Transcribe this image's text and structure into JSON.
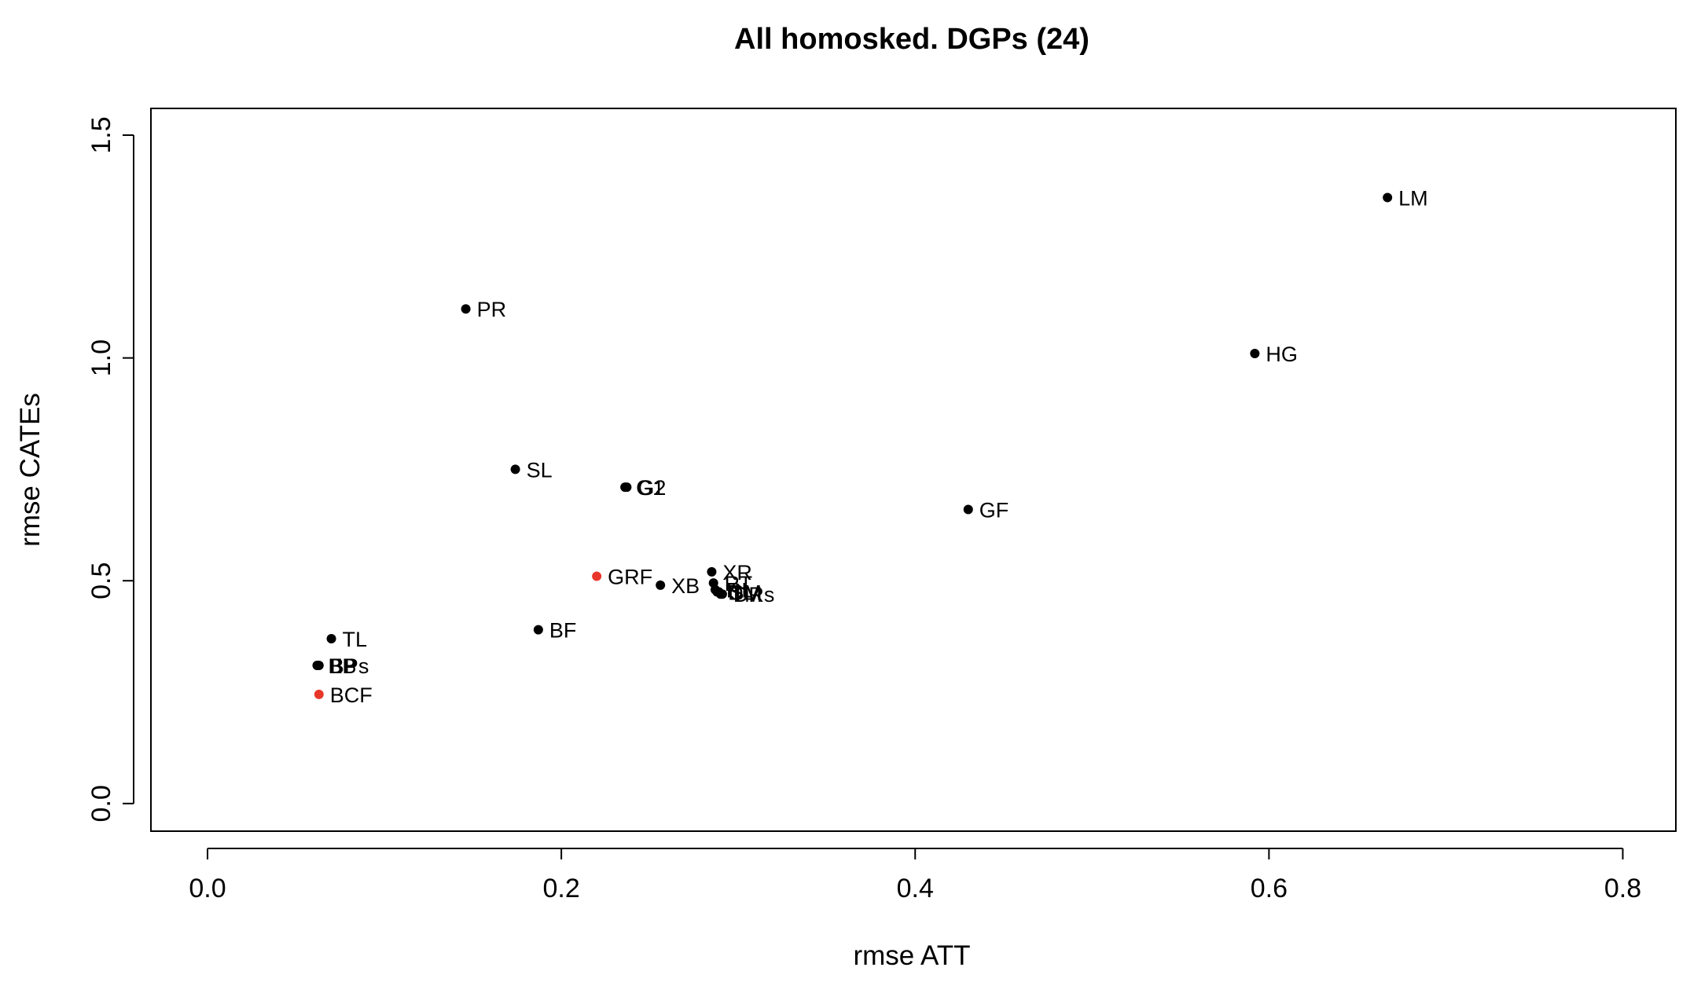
{
  "chart_data": {
    "type": "scatter",
    "title": "All homosked. DGPs (24)",
    "xlabel": "rmse ATT",
    "ylabel": "rmse CATEs",
    "xlim": [
      -0.032,
      0.83
    ],
    "ylim": [
      -0.062,
      1.56
    ],
    "x_ticks": [
      0.0,
      0.2,
      0.4,
      0.6,
      0.8
    ],
    "x_tick_labels": [
      "0.0",
      "0.2",
      "0.4",
      "0.6",
      "0.8"
    ],
    "y_ticks": [
      0.0,
      0.5,
      1.0,
      1.5
    ],
    "y_tick_labels": [
      "0.0",
      "0.5",
      "1.0",
      "1.5"
    ],
    "grid": false,
    "legend": "none",
    "colors": {
      "default": "#000000",
      "highlight": "#e8372a"
    },
    "points": [
      {
        "label": "LM",
        "x": 0.667,
        "y": 1.36,
        "color": "#000000"
      },
      {
        "label": "HG",
        "x": 0.592,
        "y": 1.01,
        "color": "#000000"
      },
      {
        "label": "PR",
        "x": 0.146,
        "y": 1.11,
        "color": "#000000"
      },
      {
        "label": "SL",
        "x": 0.174,
        "y": 0.75,
        "color": "#000000"
      },
      {
        "label": "G1",
        "x": 0.236,
        "y": 0.71,
        "color": "#000000"
      },
      {
        "label": "G2",
        "x": 0.237,
        "y": 0.71,
        "color": "#000000"
      },
      {
        "label": "GF",
        "x": 0.43,
        "y": 0.66,
        "color": "#000000"
      },
      {
        "label": "GRF",
        "x": 0.22,
        "y": 0.51,
        "color": "#e8372a"
      },
      {
        "label": "XB",
        "x": 0.256,
        "y": 0.49,
        "color": "#000000"
      },
      {
        "label": "XR",
        "x": 0.285,
        "y": 0.52,
        "color": "#000000"
      },
      {
        "label": "RT",
        "x": 0.286,
        "y": 0.495,
        "color": "#000000"
      },
      {
        "label": "RL",
        "x": 0.287,
        "y": 0.48,
        "color": "#000000"
      },
      {
        "label": "DL",
        "x": 0.288,
        "y": 0.475,
        "color": "#000000"
      },
      {
        "label": "SM",
        "x": 0.289,
        "y": 0.475,
        "color": "#000000"
      },
      {
        "label": "TM",
        "x": 0.29,
        "y": 0.47,
        "color": "#000000"
      },
      {
        "label": "DRs",
        "x": 0.291,
        "y": 0.47,
        "color": "#000000"
      },
      {
        "label": "BF",
        "x": 0.187,
        "y": 0.39,
        "color": "#000000"
      },
      {
        "label": "TL",
        "x": 0.07,
        "y": 0.37,
        "color": "#000000"
      },
      {
        "label": "BP",
        "x": 0.062,
        "y": 0.31,
        "color": "#000000"
      },
      {
        "label": "EB",
        "x": 0.062,
        "y": 0.31,
        "color": "#000000"
      },
      {
        "label": "BPs",
        "x": 0.063,
        "y": 0.31,
        "color": "#000000"
      },
      {
        "label": "BCF",
        "x": 0.063,
        "y": 0.245,
        "color": "#e8372a"
      }
    ]
  }
}
